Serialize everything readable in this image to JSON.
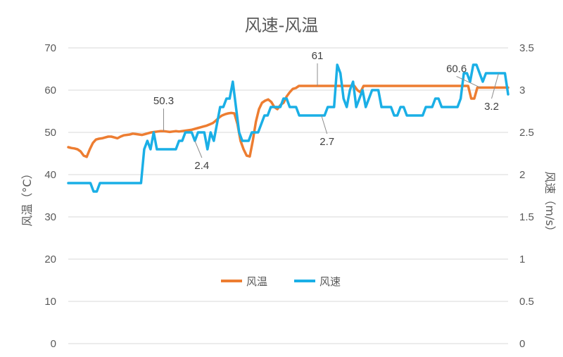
{
  "chart_data": {
    "type": "line",
    "title": "风速-风温",
    "ylabel_left": "风温（°C）",
    "ylabel_right": "风速（m/s）",
    "ylim_left": [
      0,
      70
    ],
    "ylim_right": [
      0,
      3.5
    ],
    "yticks_left": [
      "0",
      "10",
      "20",
      "30",
      "40",
      "50",
      "60",
      "70"
    ],
    "yticks_right": [
      "0",
      "0.5",
      "1",
      "1.5",
      "2",
      "2.5",
      "3",
      "3.5"
    ],
    "grid": true,
    "legend": {
      "placement": "center",
      "entries": [
        "风温",
        "风速"
      ]
    },
    "colors": {
      "temp": "#ED7D31",
      "speed": "#1AAFE6",
      "grid": "#D9D9D9",
      "text": "#595959"
    },
    "series": [
      {
        "name": "风温",
        "axis": "left",
        "values": [
          46.5,
          46.3,
          46.2,
          46.0,
          45.5,
          44.5,
          44.2,
          46.0,
          47.5,
          48.3,
          48.5,
          48.6,
          48.8,
          49.0,
          49.0,
          48.8,
          48.6,
          49.0,
          49.3,
          49.4,
          49.5,
          49.7,
          49.6,
          49.5,
          49.4,
          49.6,
          49.8,
          50.0,
          50.1,
          50.2,
          50.3,
          50.3,
          50.2,
          50.1,
          50.2,
          50.3,
          50.2,
          50.3,
          50.4,
          50.5,
          50.6,
          50.8,
          51.0,
          51.2,
          51.4,
          51.6,
          51.9,
          52.2,
          52.8,
          53.5,
          54.0,
          54.3,
          54.5,
          54.6,
          54.5,
          52.0,
          48.0,
          46.0,
          44.5,
          44.3,
          48.0,
          52.5,
          55.5,
          57.0,
          57.5,
          57.8,
          57.2,
          56.0,
          55.5,
          56.5,
          57.0,
          58.5,
          59.5,
          60.3,
          60.5,
          61.0,
          61.0,
          61.0,
          61.0,
          61.0,
          61.0,
          61.0,
          61.0,
          61.0,
          61.0,
          61.0,
          61.0,
          61.0,
          61.0,
          61.0,
          61.0,
          61.0,
          61.0,
          61.0,
          60.0,
          59.5,
          61.0,
          61.0,
          61.0,
          61.0,
          61.0,
          61.0,
          61.0,
          61.0,
          61.0,
          61.0,
          61.0,
          61.0,
          61.0,
          61.0,
          61.0,
          61.0,
          61.0,
          61.0,
          61.0,
          61.0,
          61.0,
          61.0,
          61.0,
          61.0,
          61.0,
          61.0,
          61.0,
          61.0,
          61.0,
          61.0,
          61.0,
          61.0,
          61.0,
          61.0,
          61.0,
          58.0,
          58.0,
          60.6,
          60.6,
          60.6,
          60.6,
          60.6,
          60.6,
          60.6,
          60.6,
          60.6,
          60.6,
          60.6
        ]
      },
      {
        "name": "风速",
        "axis": "right",
        "values": [
          1.9,
          1.9,
          1.9,
          1.9,
          1.9,
          1.9,
          1.9,
          1.9,
          1.8,
          1.8,
          1.9,
          1.9,
          1.9,
          1.9,
          1.9,
          1.9,
          1.9,
          1.9,
          1.9,
          1.9,
          1.9,
          1.9,
          1.9,
          1.9,
          2.3,
          2.4,
          2.3,
          2.5,
          2.3,
          2.3,
          2.3,
          2.3,
          2.3,
          2.3,
          2.3,
          2.4,
          2.4,
          2.5,
          2.5,
          2.5,
          2.4,
          2.5,
          2.5,
          2.5,
          2.3,
          2.5,
          2.4,
          2.6,
          2.8,
          2.8,
          2.9,
          2.9,
          3.1,
          2.8,
          2.5,
          2.4,
          2.4,
          2.4,
          2.5,
          2.5,
          2.5,
          2.6,
          2.7,
          2.7,
          2.8,
          2.8,
          2.8,
          2.8,
          2.9,
          2.9,
          2.8,
          2.8,
          2.8,
          2.7,
          2.7,
          2.7,
          2.7,
          2.7,
          2.7,
          2.7,
          2.7,
          2.7,
          2.8,
          2.8,
          2.8,
          3.3,
          3.2,
          2.9,
          2.8,
          3.0,
          3.1,
          2.8,
          2.9,
          3.0,
          2.8,
          2.9,
          3.0,
          3.0,
          3.0,
          2.8,
          2.8,
          2.8,
          2.8,
          2.7,
          2.7,
          2.8,
          2.8,
          2.7,
          2.7,
          2.7,
          2.7,
          2.7,
          2.7,
          2.8,
          2.8,
          2.8,
          2.9,
          2.9,
          2.8,
          2.8,
          2.8,
          2.8,
          2.8,
          2.8,
          2.9,
          3.2,
          3.2,
          3.1,
          3.3,
          3.3,
          3.2,
          3.1,
          3.2,
          3.2,
          3.2,
          3.2,
          3.2,
          3.2,
          3.2,
          2.95
        ]
      }
    ],
    "annotations": [
      {
        "text": "50.3",
        "series": 0,
        "index": 31
      },
      {
        "text": "2.4",
        "series": 1,
        "index": 40
      },
      {
        "text": "61",
        "series": 0,
        "index": 81
      },
      {
        "text": "2.7",
        "series": 1,
        "index": 80
      },
      {
        "text": "60.6",
        "series": 0,
        "index": 134
      },
      {
        "text": "3.2",
        "series": 1,
        "index": 136
      }
    ]
  }
}
